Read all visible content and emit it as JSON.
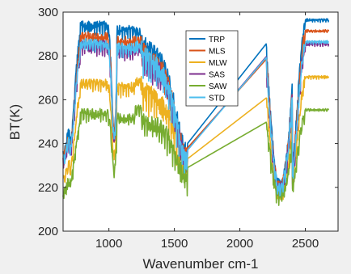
{
  "chart_data": {
    "type": "line",
    "title": "",
    "xlabel": "Wavenumber cm-1",
    "ylabel": "BT(K)",
    "xlim": [
      650,
      2750
    ],
    "ylim": [
      200,
      300
    ],
    "xticks": [
      1000,
      1500,
      2000,
      2500
    ],
    "yticks": [
      200,
      220,
      240,
      260,
      280,
      300
    ],
    "xtick_labels": [
      "1000",
      "1500",
      "2000",
      "2500"
    ],
    "ytick_labels": [
      "200",
      "220",
      "240",
      "260",
      "280",
      "300"
    ],
    "grid": false,
    "legend_position": "top-center",
    "series": [
      {
        "name": "TRP",
        "color": "#0072BD",
        "profile": {
          "peak": 296,
          "band1000": 248,
          "plateau1300": 290,
          "at1600": 240,
          "at2200": 288,
          "at2300": 224,
          "tail": 297
        }
      },
      {
        "name": "MLS",
        "color": "#D95319",
        "profile": {
          "peak": 291,
          "band1000": 246,
          "plateau1300": 286,
          "at1600": 238,
          "at2200": 285,
          "at2300": 223,
          "tail": 292
        }
      },
      {
        "name": "MLW",
        "color": "#EDB120",
        "profile": {
          "peak": 270,
          "band1000": 236,
          "plateau1300": 268,
          "at1600": 233,
          "at2200": 266,
          "at2300": 220,
          "tail": 271
        }
      },
      {
        "name": "SAS",
        "color": "#7E2F8E",
        "profile": {
          "peak": 287,
          "band1000": 244,
          "plateau1300": 283,
          "at1600": 237,
          "at2200": 281,
          "at2300": 222,
          "tail": 286
        }
      },
      {
        "name": "SAW",
        "color": "#77AC30",
        "profile": {
          "peak": 256,
          "band1000": 230,
          "plateau1300": 255,
          "at1600": 229,
          "at2200": 254,
          "at2300": 219,
          "tail": 256
        }
      },
      {
        "name": "STD",
        "color": "#4DBEEE",
        "profile": {
          "peak": 288,
          "band1000": 245,
          "plateau1300": 284,
          "at1600": 237,
          "at2200": 282,
          "at2300": 222,
          "tail": 287
        }
      }
    ]
  }
}
